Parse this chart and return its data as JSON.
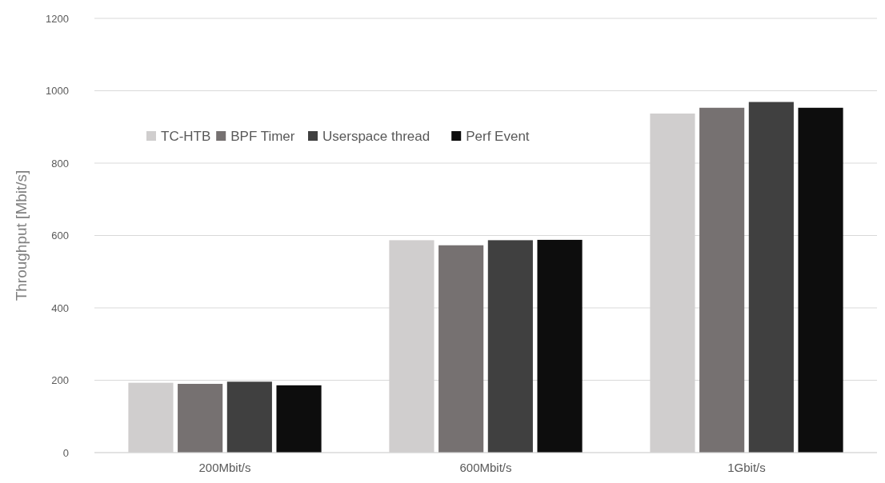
{
  "chart_data": {
    "type": "bar",
    "ylabel": "Throughput [Mbit/s]",
    "categories": [
      "200Mbit/s",
      "600Mbit/s",
      "1Gbit/s"
    ],
    "series": [
      {
        "name": "TC-HTB",
        "color": "#d0cece",
        "values": [
          193,
          587,
          937
        ]
      },
      {
        "name": "BPF Timer",
        "color": "#767171",
        "values": [
          190,
          573,
          953
        ]
      },
      {
        "name": "Userspace thread",
        "color": "#404040",
        "values": [
          196,
          587,
          969
        ]
      },
      {
        "name": "Perf Event",
        "color": "#0d0d0d",
        "values": [
          186,
          588,
          953
        ]
      }
    ],
    "ylim": [
      0,
      1200
    ],
    "yticks": [
      0,
      200,
      400,
      600,
      800,
      1000,
      1200
    ],
    "grid": "y",
    "legend": "top left"
  }
}
